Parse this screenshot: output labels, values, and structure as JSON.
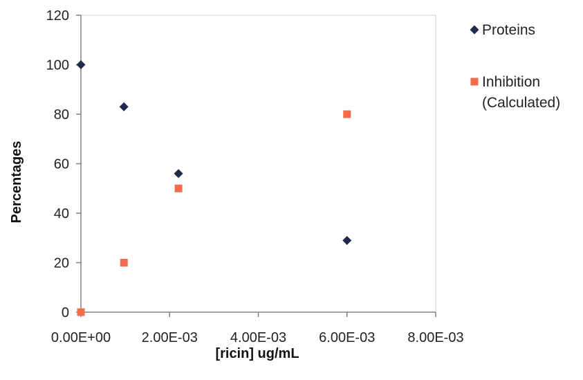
{
  "chart_data": {
    "type": "scatter",
    "xlabel": "[ricin] ug/mL",
    "ylabel": "Percentages",
    "xlim": [
      0,
      0.008
    ],
    "ylim": [
      0,
      120
    ],
    "x_ticks": [
      0,
      0.002,
      0.004,
      0.006,
      0.008
    ],
    "x_tick_labels": [
      "0.00E+00",
      "2.00E-03",
      "4.00E-03",
      "6.00E-03",
      "8.00E-03"
    ],
    "y_ticks": [
      0,
      20,
      40,
      60,
      80,
      100,
      120
    ],
    "y_tick_labels": [
      "0",
      "20",
      "40",
      "60",
      "80",
      "100",
      "120"
    ],
    "grid": false,
    "legend_position": "right",
    "series": [
      {
        "name": "Proteins",
        "marker": "diamond",
        "color": "#1f2a4d",
        "points": [
          {
            "x": 0,
            "y": 100
          },
          {
            "x": 0.00097,
            "y": 83
          },
          {
            "x": 0.0022,
            "y": 56
          },
          {
            "x": 0.006,
            "y": 29
          }
        ]
      },
      {
        "name": "Inhibition (Calculated)",
        "marker": "square",
        "color": "#f26b4a",
        "points": [
          {
            "x": 0,
            "y": 0
          },
          {
            "x": 0.00097,
            "y": 20
          },
          {
            "x": 0.0022,
            "y": 50
          },
          {
            "x": 0.006,
            "y": 80
          }
        ]
      }
    ],
    "legend": [
      {
        "lines": [
          "Proteins"
        ]
      },
      {
        "lines": [
          "Inhibition",
          "(Calculated)"
        ]
      }
    ]
  }
}
